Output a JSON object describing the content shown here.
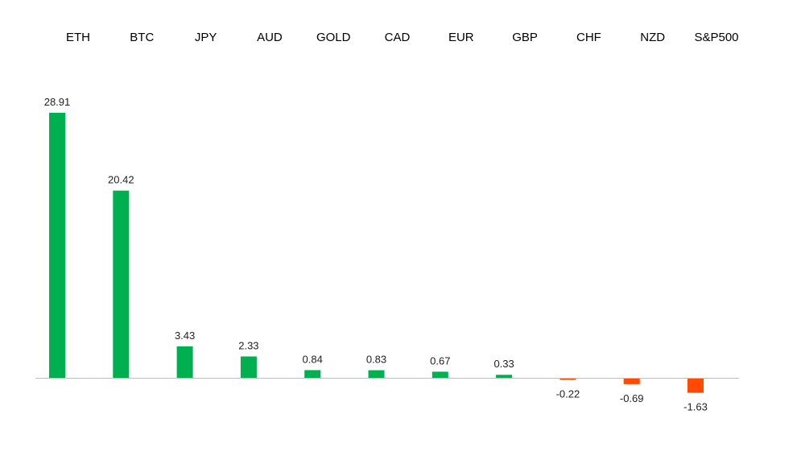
{
  "chart_data": {
    "type": "bar",
    "title": "",
    "xlabel": "",
    "ylabel": "",
    "categories": [
      "ETH",
      "BTC",
      "JPY",
      "AUD",
      "GOLD",
      "CAD",
      "EUR",
      "GBP",
      "CHF",
      "NZD",
      "S&P500"
    ],
    "values": [
      28.91,
      20.42,
      3.43,
      2.33,
      0.84,
      0.83,
      0.67,
      0.33,
      -0.22,
      -0.69,
      -1.63
    ],
    "value_labels": [
      "28.91",
      "20.42",
      "3.43",
      "2.33",
      "0.84",
      "0.83",
      "0.67",
      "0.33",
      "-0.22",
      "-0.69",
      "-1.63"
    ],
    "category_axis_position": "top",
    "grid": false,
    "legend": "none",
    "colors": {
      "positive": "#00b050",
      "negative": "#ff4a00",
      "axis": "#bfbfbf"
    }
  }
}
